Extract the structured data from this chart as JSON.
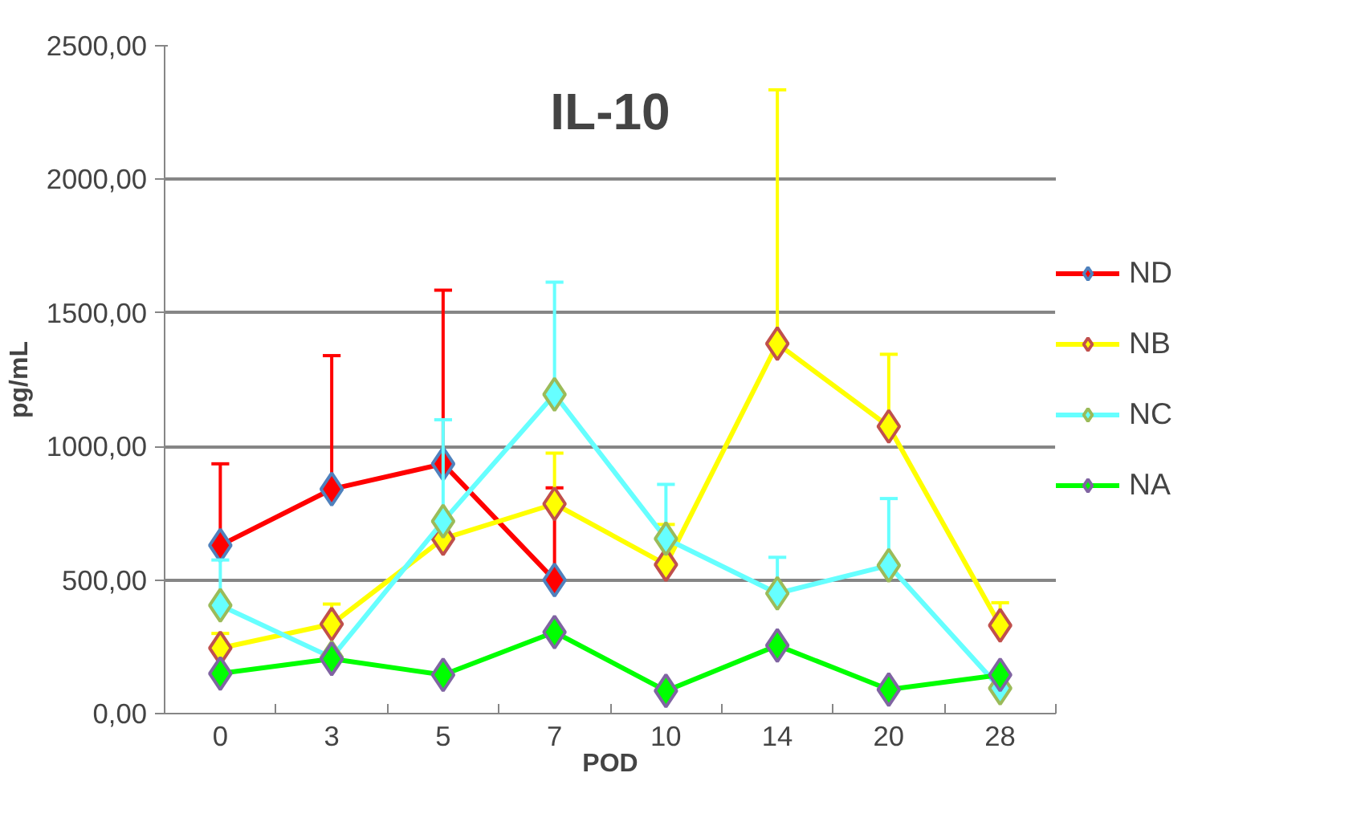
{
  "chart_data": {
    "type": "line",
    "title": "IL-10",
    "xlabel": "POD",
    "ylabel": "pg/mL",
    "categories": [
      "0",
      "3",
      "5",
      "7",
      "10",
      "14",
      "20",
      "28"
    ],
    "series": [
      {
        "name": "ND",
        "color": "#ff0000",
        "values": [
          630,
          840,
          935,
          500,
          null,
          null,
          null,
          null
        ],
        "errors": [
          [
            630,
            935
          ],
          [
            840,
            1340
          ],
          [
            935,
            1585
          ],
          [
            500,
            845
          ],
          null,
          null,
          null,
          null
        ]
      },
      {
        "name": "NB",
        "color": "#ffff00",
        "values": [
          245,
          335,
          655,
          785,
          558,
          1385,
          1075,
          330
        ],
        "errors": [
          [
            245,
            300
          ],
          [
            335,
            410
          ],
          null,
          [
            785,
            975
          ],
          [
            558,
            708
          ],
          [
            1385,
            2335
          ],
          [
            1075,
            1345
          ],
          [
            330,
            415
          ]
        ]
      },
      {
        "name": "NC",
        "color": "#66ffff",
        "values": [
          405,
          210,
          720,
          1195,
          655,
          450,
          555,
          95
        ],
        "errors": [
          [
            405,
            575
          ],
          null,
          [
            720,
            1100
          ],
          [
            1195,
            1615
          ],
          [
            655,
            858
          ],
          [
            450,
            585
          ],
          [
            555,
            805
          ],
          null
        ]
      },
      {
        "name": "NA",
        "color": "#00ff00",
        "values": [
          150,
          205,
          145,
          305,
          85,
          255,
          90,
          145
        ]
      }
    ],
    "ylim": [
      0,
      2500
    ],
    "yticks": [
      {
        "value": 0,
        "label": "0,00"
      },
      {
        "value": 500,
        "label": "500,00"
      },
      {
        "value": 1000,
        "label": "1000,00"
      },
      {
        "value": 1500,
        "label": "1500,00"
      },
      {
        "value": 2000,
        "label": "2000,00"
      },
      {
        "value": 2500,
        "label": "2500,00"
      }
    ],
    "grid": "y",
    "legend": "right",
    "marker": "diamond",
    "line_style": "solid"
  }
}
